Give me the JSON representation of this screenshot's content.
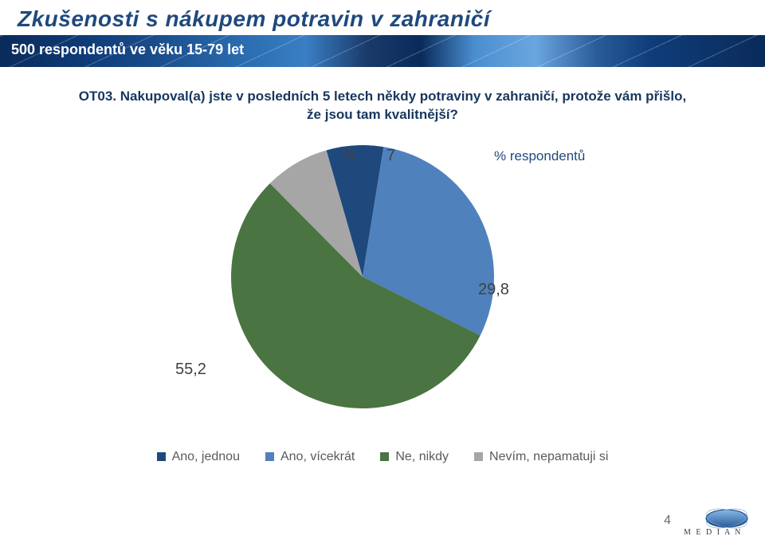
{
  "title": {
    "text": "Zkušenosti s nákupem potravin v zahraničí",
    "color": "#1f497d",
    "fontsize": 28
  },
  "subtitle": {
    "text": "500 respondentů ve věku 15-79 let",
    "fontsize": 18,
    "text_color": "#ffffff"
  },
  "question": {
    "text": "OT03. Nakupoval(a) jste v posledních 5 letech někdy potraviny v zahraničí, protože vám přišlo, že jsou tam kvalitnější?",
    "color": "#17375e",
    "fontsize": 17
  },
  "chart": {
    "type": "pie",
    "background_color": "#ffffff",
    "slices": [
      {
        "label": "Ano, jednou",
        "value": 7,
        "display": "7",
        "color": "#1f497d"
      },
      {
        "label": "Ano, vícekrát",
        "value": 29.8,
        "display": "29,8",
        "color": "#4f81bd"
      },
      {
        "label": "Ne, nikdy",
        "value": 55.2,
        "display": "55,2",
        "color": "#4a7441"
      },
      {
        "label": "Nevím, nepamatuji si",
        "value": 8,
        "display": "8",
        "color": "#a6a6a6"
      }
    ],
    "start_angle_deg": -106,
    "radius": 165,
    "label_fontsize": 20,
    "label_color": "#404040",
    "respondents_label": {
      "text": "% respondentů",
      "color": "#1f497d",
      "fontsize": 17
    }
  },
  "legend": {
    "items": [
      {
        "label": "Ano, jednou",
        "color": "#1f497d"
      },
      {
        "label": "Ano, vícekrát",
        "color": "#4f81bd"
      },
      {
        "label": "Ne, nikdy",
        "color": "#4a7441"
      },
      {
        "label": "Nevím, nepamatuji si",
        "color": "#a6a6a6"
      }
    ],
    "text_color": "#5a5a5a",
    "swatch_size": 11,
    "fontsize": 16
  },
  "page_number": "4",
  "logo": {
    "text": "M E D I A N",
    "text_color": "#3a3a3a",
    "ellipse_stroke": "#2a5c9a",
    "ellipse_fill_top": "#6aa6e0",
    "ellipse_fill_bottom": "#2a5c9a"
  }
}
